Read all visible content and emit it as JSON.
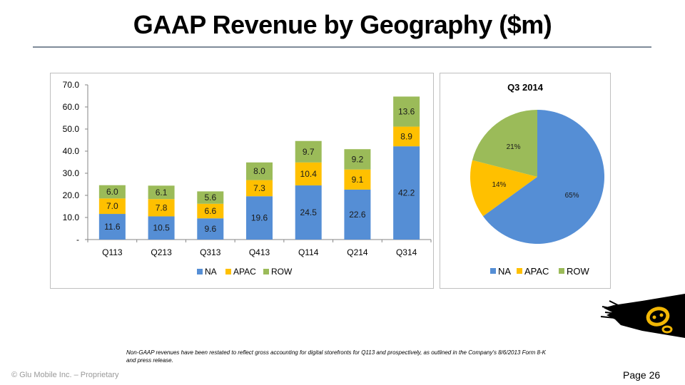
{
  "slide": {
    "title": "GAAP Revenue by Geography ($m)",
    "footnote": "Non-GAAP revenues have been restated to reflect gross accounting for digital storefronts for Q113 and prospectively, as outlined in the Company's 8/6/2013 Form 8-K and press release.",
    "copyright": "© Glu Mobile Inc. – Proprietary",
    "page": "Page 26",
    "logo_icon": "glu-logo-icon"
  },
  "colors": {
    "NA": "#558ed5",
    "APAC": "#ffc000",
    "ROW": "#9bbb59"
  },
  "chart_data": [
    {
      "type": "bar",
      "stacked": true,
      "title": "",
      "categories": [
        "Q113",
        "Q213",
        "Q313",
        "Q413",
        "Q114",
        "Q214",
        "Q314"
      ],
      "series": [
        {
          "name": "NA",
          "values": [
            11.6,
            10.5,
            9.6,
            19.6,
            24.5,
            22.6,
            42.2
          ]
        },
        {
          "name": "APAC",
          "values": [
            7.0,
            7.8,
            6.6,
            7.3,
            10.4,
            9.1,
            8.9
          ]
        },
        {
          "name": "ROW",
          "values": [
            6.0,
            6.1,
            5.6,
            8.0,
            9.7,
            9.2,
            13.6
          ]
        }
      ],
      "yticks": [
        "-",
        "10.0",
        "20.0",
        "30.0",
        "40.0",
        "50.0",
        "60.0",
        "70.0"
      ],
      "ylim": [
        0,
        70
      ],
      "xlabel": "",
      "ylabel": "",
      "grid": false,
      "legend": {
        "position": "bottom",
        "entries": [
          "NA",
          "APAC",
          "ROW"
        ]
      }
    },
    {
      "type": "pie",
      "title": "Q3 2014",
      "labels": [
        "NA",
        "APAC",
        "ROW"
      ],
      "values": [
        65,
        14,
        21
      ],
      "data_labels": [
        "65%",
        "14%",
        "21%"
      ],
      "legend": {
        "position": "bottom",
        "entries": [
          "NA",
          "APAC",
          "ROW"
        ]
      }
    }
  ]
}
